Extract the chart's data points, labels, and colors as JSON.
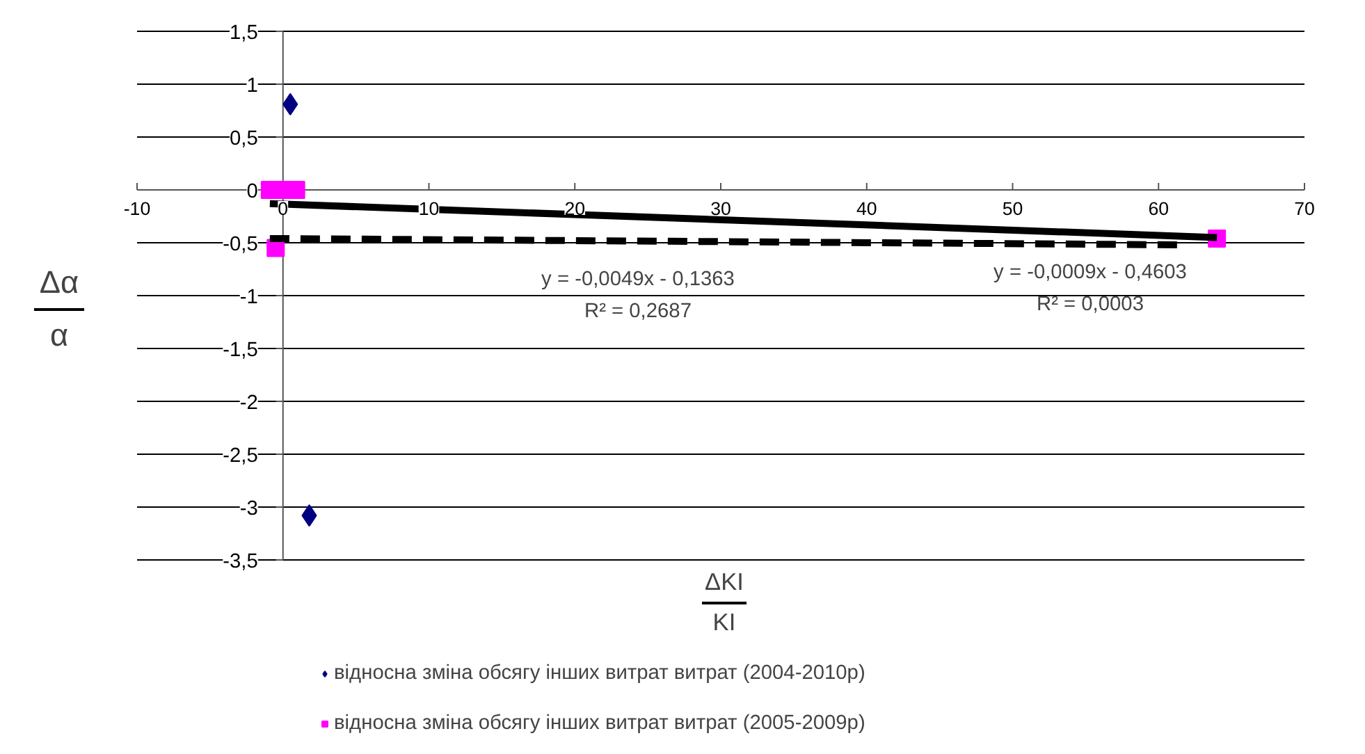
{
  "chart_data": {
    "type": "scatter",
    "xlabel": "ΔKI\nKI",
    "ylabel": "Δα\nα",
    "series": [
      {
        "name": "відносна зміна обсягу інших витрат витрат (2004-2010р)",
        "color": "#000080",
        "marker": "diamond",
        "x": [
          0.5,
          1.8
        ],
        "values": [
          0.81,
          -3.08
        ]
      },
      {
        "name": "відносна зміна обсягу інших витрат витрат (2005-2009р)",
        "color": "#ff00ff",
        "marker": "square",
        "x": [
          -0.9,
          0.1,
          0.9,
          -0.5,
          64
        ],
        "values": [
          0,
          0,
          0,
          -0.55,
          -0.46
        ]
      },
      {
        "type": "line",
        "color": "#000000",
        "line_style": "solid",
        "x": [
          -0.9,
          64
        ],
        "values": [
          -0.13,
          -0.45
        ]
      },
      {
        "type": "line",
        "color": "#000000",
        "line_style": "dashed",
        "x": [
          -0.9,
          62
        ],
        "values": [
          -0.46,
          -0.52
        ]
      }
    ],
    "xlim": [
      -10,
      70
    ],
    "xticks": [
      -10,
      0,
      10,
      20,
      30,
      40,
      50,
      60,
      70
    ],
    "ylim": [
      -3.5,
      1.5
    ],
    "yticks": [
      {
        "value": 1.5,
        "label": "1,5"
      },
      1,
      {
        "value": 0.5,
        "label": "0,5"
      },
      0,
      {
        "value": -0.5,
        "label": "-0,5"
      },
      -1,
      {
        "value": -1.5,
        "label": "-1,5"
      },
      -2,
      {
        "value": -2.5,
        "label": "-2,5"
      },
      -3,
      {
        "value": -3.5,
        "label": "-3,5"
      }
    ],
    "grid": "y",
    "legend": "bottom",
    "annotations": [
      "y = -0,0049x - 0,1363\nR² = 0,2687",
      "y = -0,0009x - 0,4603\nR² = 0,0003"
    ]
  }
}
